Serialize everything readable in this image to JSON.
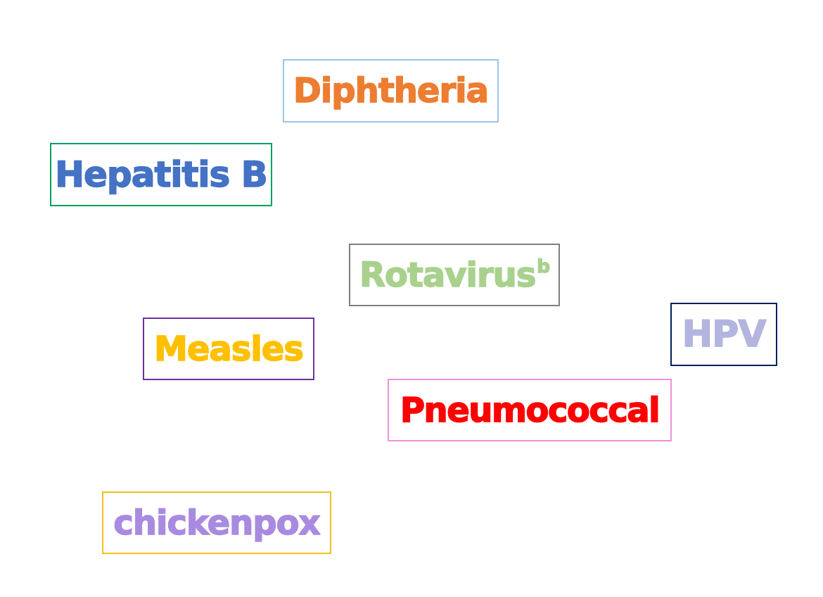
{
  "terms": {
    "diphtheria": {
      "label": "Diphtheria",
      "text_color": "#ED7D31",
      "border_color": "#9DC3E6"
    },
    "hepatitis_b": {
      "label": "Hepatitis B",
      "text_color": "#4472C4",
      "border_color": "#00A060"
    },
    "rotavirus": {
      "label": "Rotavirus",
      "superscript": "b",
      "text_color": "#A9D18E",
      "border_color": "#7F7F7F"
    },
    "hpv": {
      "label": "HPV",
      "text_color": "#B4B4E0",
      "border_color": "#002060"
    },
    "measles": {
      "label": "Measles",
      "text_color": "#FFC000",
      "border_color": "#7030A0"
    },
    "pneumococcal": {
      "label": "Pneumococcal",
      "text_color": "#FF0000",
      "border_color": "#F090D8"
    },
    "chickenpox": {
      "label": "chickenpox",
      "text_color": "#A88BE0",
      "border_color": "#F0C020"
    }
  }
}
